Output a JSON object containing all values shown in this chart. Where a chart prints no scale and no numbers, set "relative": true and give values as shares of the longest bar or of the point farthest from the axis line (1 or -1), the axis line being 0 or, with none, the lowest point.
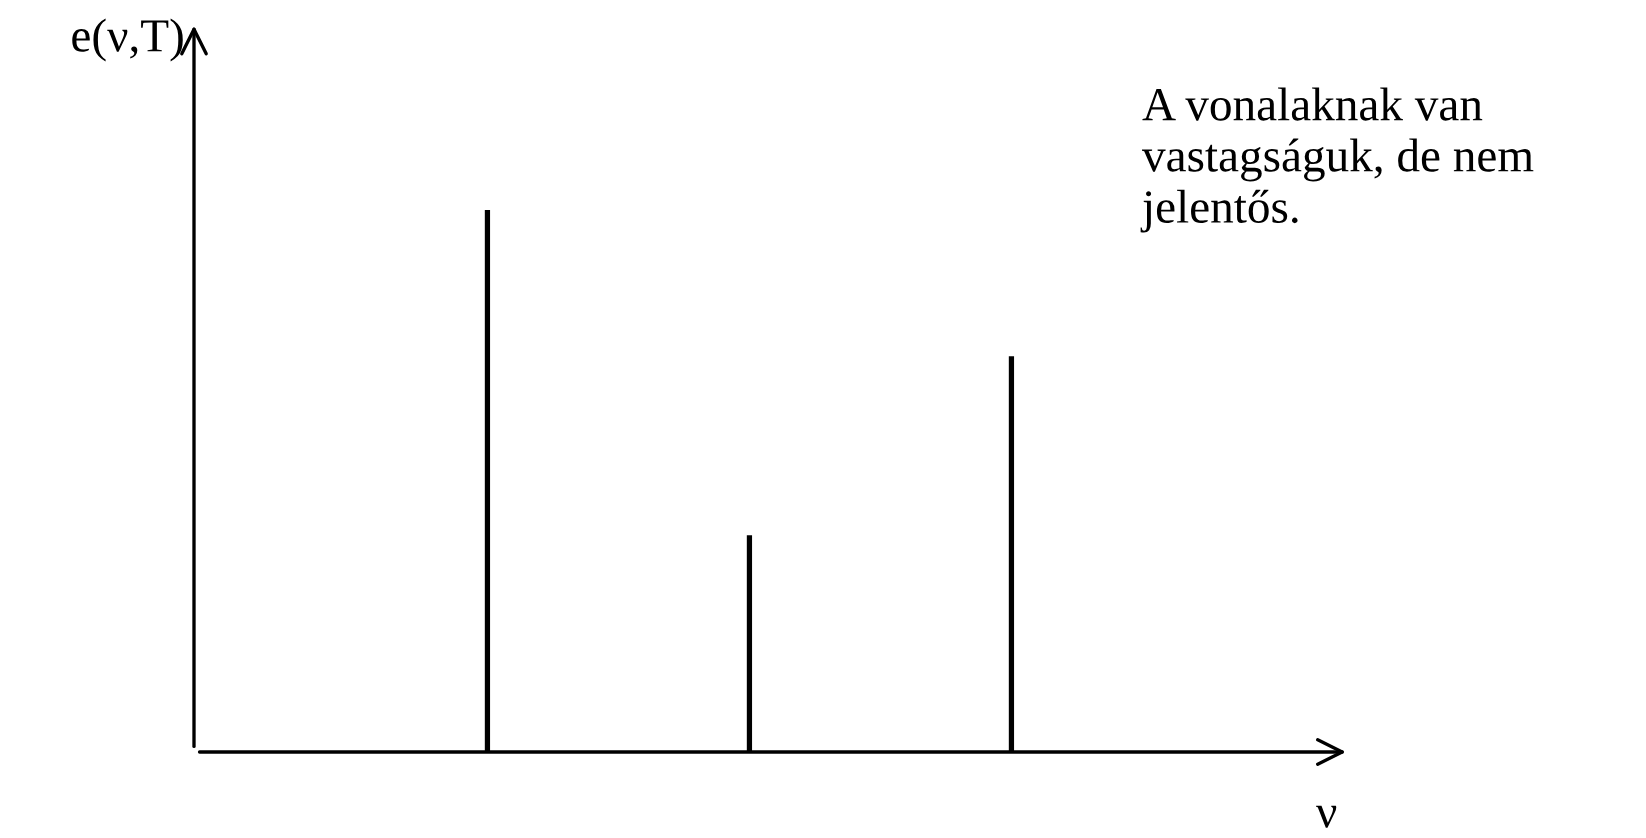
{
  "chart_data": {
    "type": "bar",
    "relative": true,
    "categories": [
      null,
      null,
      null
    ],
    "values": [
      1,
      0.4,
      0.73
    ],
    "color": "#000000",
    "xlabel": "ν",
    "ylabel": "e(ν,T)",
    "annotations": [
      "A vonalaknak van\nvastagságuk, de nem\njelentős."
    ],
    "grid": false,
    "legend": false
  }
}
